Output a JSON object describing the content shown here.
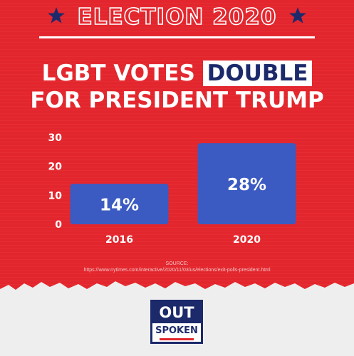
{
  "header": {
    "title": "ELECTION 2020",
    "star_icon": "star-icon",
    "star_color": "#1c2a6b"
  },
  "headline": {
    "line1_prefix": "LGBT VOTES ",
    "line1_highlight": "DOUBLE",
    "line2": "FOR PRESIDENT TRUMP"
  },
  "chart_data": {
    "type": "bar",
    "title": "",
    "xlabel": "",
    "ylabel": "",
    "categories": [
      "2016",
      "2020"
    ],
    "values": [
      14,
      28
    ],
    "data_labels": [
      "14%",
      "28%"
    ],
    "ylim": [
      0,
      30
    ],
    "yticks": [
      "0",
      "10",
      "20",
      "30"
    ],
    "grid": false,
    "bar_color": "#3b5bc2"
  },
  "source": {
    "label": "SOURCE:",
    "url": "https://www.nytimes.com/interactive/2020/11/03/us/elections/exit-polls-president.html"
  },
  "logo": {
    "top": "OUT",
    "bottom": "SPOKEN"
  },
  "colors": {
    "background": "#e3262d",
    "navy": "#1c2a6b",
    "paper": "#eeeeee"
  }
}
